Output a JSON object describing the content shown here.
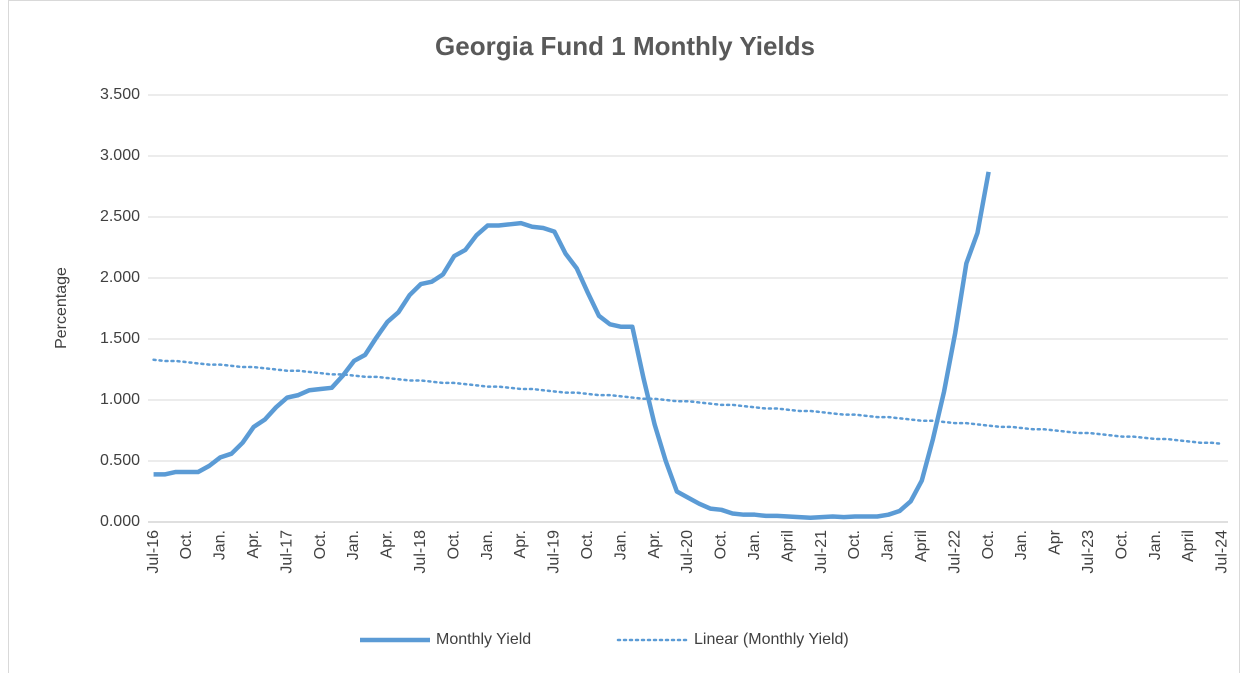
{
  "chart_data": {
    "type": "line",
    "title": "Georgia Fund 1 Monthly Yields",
    "y_label": "Percentage",
    "categories": [
      "Jul-16",
      null,
      null,
      "Oct.",
      null,
      null,
      "Jan.",
      null,
      null,
      "Apr.",
      null,
      null,
      "Jul-17",
      null,
      null,
      "Oct.",
      null,
      null,
      "Jan.",
      null,
      null,
      "Apr.",
      null,
      null,
      "Jul-18",
      null,
      null,
      "Oct.",
      null,
      null,
      "Jan.",
      null,
      null,
      "Apr.",
      null,
      null,
      "Jul-19",
      null,
      null,
      "Oct.",
      null,
      null,
      "Jan.",
      null,
      null,
      "Apr.",
      null,
      null,
      "Jul-20",
      null,
      null,
      "Oct.",
      null,
      null,
      "Jan.",
      null,
      null,
      "April",
      null,
      null,
      "Jul-21",
      null,
      null,
      "Oct.",
      null,
      null,
      "Jan.",
      null,
      null,
      "April",
      null,
      null,
      "Jul-22",
      null,
      null,
      "Oct.",
      null,
      null,
      "Jan.",
      null,
      null,
      "Apr",
      null,
      null,
      "Jul-23",
      null,
      null,
      "Oct.",
      null,
      null,
      "Jan.",
      null,
      null,
      "April",
      null,
      null,
      "Jul-24"
    ],
    "series": [
      {
        "name": "Monthly Yield",
        "color": "#5b9bd5",
        "style": "solid",
        "values": [
          0.39,
          0.39,
          0.41,
          0.41,
          0.41,
          0.46,
          0.53,
          0.56,
          0.65,
          0.78,
          0.84,
          0.94,
          1.02,
          1.04,
          1.08,
          1.09,
          1.1,
          1.2,
          1.32,
          1.37,
          1.51,
          1.64,
          1.72,
          1.86,
          1.95,
          1.97,
          2.03,
          2.18,
          2.23,
          2.35,
          2.43,
          2.43,
          2.44,
          2.45,
          2.42,
          2.41,
          2.38,
          2.2,
          2.08,
          1.88,
          1.69,
          1.62,
          1.6,
          1.6,
          1.18,
          0.8,
          0.5,
          0.25,
          0.2,
          0.15,
          0.11,
          0.1,
          0.07,
          0.06,
          0.06,
          0.05,
          0.05,
          0.045,
          0.04,
          0.035,
          0.04,
          0.045,
          0.04,
          0.045,
          0.045,
          0.045,
          0.06,
          0.09,
          0.17,
          0.34,
          0.68,
          1.07,
          1.55,
          2.12,
          2.37,
          2.87,
          null,
          null,
          null,
          null,
          null,
          null,
          null,
          null,
          null,
          null,
          null,
          null,
          null,
          null,
          null,
          null,
          null,
          null,
          null,
          null,
          null
        ]
      },
      {
        "name": "Linear (Monthly Yield)",
        "color": "#5b9bd5",
        "style": "dotted",
        "values": [
          1.33,
          1.32,
          1.32,
          1.31,
          1.3,
          1.29,
          1.29,
          1.28,
          1.27,
          1.27,
          1.26,
          1.25,
          1.24,
          1.24,
          1.23,
          1.22,
          1.21,
          1.21,
          1.2,
          1.19,
          1.19,
          1.18,
          1.17,
          1.16,
          1.16,
          1.15,
          1.14,
          1.14,
          1.13,
          1.12,
          1.11,
          1.11,
          1.1,
          1.09,
          1.09,
          1.08,
          1.07,
          1.06,
          1.06,
          1.05,
          1.04,
          1.04,
          1.03,
          1.02,
          1.01,
          1.01,
          1.0,
          0.99,
          0.99,
          0.98,
          0.97,
          0.96,
          0.96,
          0.95,
          0.94,
          0.93,
          0.93,
          0.92,
          0.91,
          0.91,
          0.9,
          0.89,
          0.88,
          0.88,
          0.87,
          0.86,
          0.86,
          0.85,
          0.84,
          0.83,
          0.83,
          0.82,
          0.81,
          0.81,
          0.8,
          0.79,
          0.78,
          0.78,
          0.77,
          0.76,
          0.76,
          0.75,
          0.74,
          0.73,
          0.73,
          0.72,
          0.71,
          0.7,
          0.7,
          0.69,
          0.68,
          0.68,
          0.67,
          0.66,
          0.65,
          0.65,
          0.64
        ]
      }
    ],
    "ylim": [
      0,
      3.5
    ],
    "yticks": [
      {
        "value": 0,
        "label": "0.000"
      },
      {
        "value": 0.5,
        "label": "0.500"
      },
      {
        "value": 1,
        "label": "1.000"
      },
      {
        "value": 1.5,
        "label": "1.500"
      },
      {
        "value": 2,
        "label": "2.000"
      },
      {
        "value": 2.5,
        "label": "2.500"
      },
      {
        "value": 3,
        "label": "3.000"
      },
      {
        "value": 3.5,
        "label": "3.500"
      }
    ],
    "grid": true,
    "legend": "bottom"
  }
}
